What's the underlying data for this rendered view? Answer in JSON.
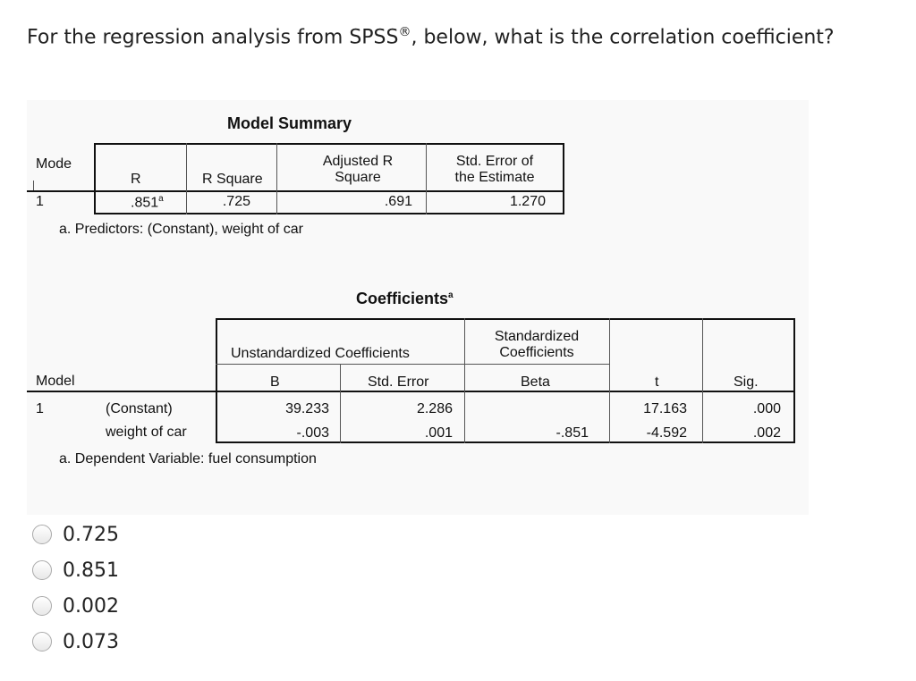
{
  "question": {
    "text_before": "For the regression analysis from SPSS",
    "reg_mark": "®",
    "text_after": ", below, what is the correlation coefficient?"
  },
  "model_summary": {
    "title": "Model Summary",
    "headers": {
      "model": "Mode",
      "r": "R",
      "r_square": "R Square",
      "adj_r_line1": "Adjusted R",
      "adj_r_line2": "Square",
      "std_err_line1": "Std. Error of",
      "std_err_line2": "the Estimate"
    },
    "row": {
      "model": "1",
      "r": ".851",
      "r_sup": "a",
      "r_square": ".725",
      "adj_r_square": ".691",
      "std_err": "1.270"
    },
    "footnote": "a. Predictors: (Constant), weight of car"
  },
  "coefficients": {
    "title": "Coefficients",
    "title_sup": "a",
    "headers": {
      "unstd": "Unstandardized Coefficients",
      "std_line1": "Standardized",
      "std_line2": "Coefficients",
      "model": "Model",
      "b": "B",
      "std_error": "Std. Error",
      "beta": "Beta",
      "t": "t",
      "sig": "Sig."
    },
    "rows": [
      {
        "model": "1",
        "name": "(Constant)",
        "b": "39.233",
        "std_error": "2.286",
        "beta": "",
        "t": "17.163",
        "sig": ".000"
      },
      {
        "model": "",
        "name": "weight of car",
        "b": "-.003",
        "std_error": ".001",
        "beta": "-.851",
        "t": "-4.592",
        "sig": ".002"
      }
    ],
    "footnote": "a. Dependent Variable: fuel consumption"
  },
  "options": [
    "0.725",
    "0.851",
    "0.002",
    "0.073"
  ]
}
